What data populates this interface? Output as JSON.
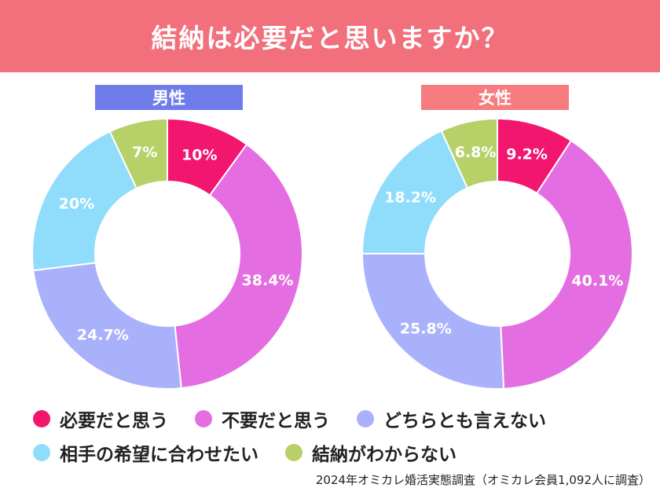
{
  "title": "結納は必要だと思いますか？",
  "source": "2024年オミカレ婚活実態調査（オミカレ会員1,092人に調査）",
  "colors": {
    "banner": "#f1707c",
    "male_label_bg": "#6e7de9",
    "female_label_bg": "#f77c80",
    "text": "#222222",
    "label_text": "#ffffff"
  },
  "legend": [
    {
      "label": "必要だと思う",
      "color": "#f2166e"
    },
    {
      "label": "不要だと思う",
      "color": "#e46ee1"
    },
    {
      "label": "どちらとも言えない",
      "color": "#aab1fb"
    },
    {
      "label": "相手の希望に合わせたい",
      "color": "#8fdcfb"
    },
    {
      "label": "結納がわからない",
      "color": "#b7d068"
    }
  ],
  "chart_data": [
    {
      "type": "pie",
      "title": "男性",
      "categories": [
        "必要だと思う",
        "不要だと思う",
        "どちらとも言えない",
        "相手の希望に合わせたい",
        "結納がわからない"
      ],
      "values": [
        10,
        38.4,
        24.7,
        20,
        7
      ],
      "value_labels": [
        "10%",
        "38.4%",
        "24.7%",
        "20%",
        "7%"
      ],
      "unit": "%",
      "donut": true
    },
    {
      "type": "pie",
      "title": "女性",
      "categories": [
        "必要だと思う",
        "不要だと思う",
        "どちらとも言えない",
        "相手の希望に合わせたい",
        "結納がわからない"
      ],
      "values": [
        9.2,
        40.1,
        25.8,
        18.2,
        6.8
      ],
      "value_labels": [
        "9.2%",
        "40.1%",
        "25.8%",
        "18.2%",
        "6.8%"
      ],
      "unit": "%",
      "donut": true
    }
  ]
}
